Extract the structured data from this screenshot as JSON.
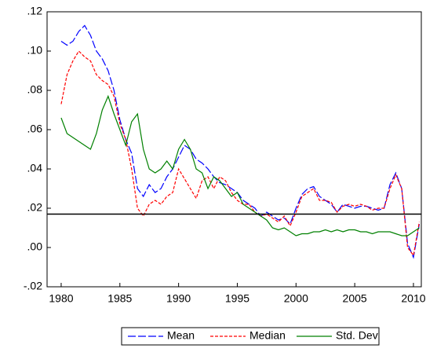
{
  "chart_data": {
    "type": "line",
    "x": [
      1980,
      1980.5,
      1981,
      1981.5,
      1982,
      1982.5,
      1983,
      1983.5,
      1984,
      1984.5,
      1985,
      1985.5,
      1986,
      1986.5,
      1987,
      1987.5,
      1988,
      1988.5,
      1989,
      1989.5,
      1990,
      1990.5,
      1991,
      1991.5,
      1992,
      1992.5,
      1993,
      1993.5,
      1994,
      1994.5,
      1995,
      1995.5,
      1996,
      1996.5,
      1997,
      1997.5,
      1998,
      1998.5,
      1999,
      1999.5,
      2000,
      2000.5,
      2001,
      2001.5,
      2002,
      2002.5,
      2003,
      2003.5,
      2004,
      2004.5,
      2005,
      2005.5,
      2006,
      2006.5,
      2007,
      2007.5,
      2008,
      2008.5,
      2009,
      2009.5,
      2010,
      2010.5
    ],
    "series": [
      {
        "name": "Mean",
        "color": "#0000ff",
        "dash": "10 3",
        "values": [
          0.105,
          0.103,
          0.105,
          0.11,
          0.113,
          0.108,
          0.1,
          0.096,
          0.09,
          0.08,
          0.065,
          0.055,
          0.048,
          0.03,
          0.026,
          0.032,
          0.028,
          0.03,
          0.036,
          0.04,
          0.046,
          0.052,
          0.05,
          0.045,
          0.043,
          0.04,
          0.036,
          0.033,
          0.032,
          0.03,
          0.028,
          0.024,
          0.022,
          0.02,
          0.016,
          0.018,
          0.016,
          0.014,
          0.015,
          0.012,
          0.02,
          0.027,
          0.03,
          0.031,
          0.026,
          0.024,
          0.022,
          0.018,
          0.022,
          0.021,
          0.02,
          0.021,
          0.021,
          0.02,
          0.019,
          0.02,
          0.032,
          0.038,
          0.03,
          0.002,
          -0.005,
          0.012
        ]
      },
      {
        "name": "Median",
        "color": "#ff0000",
        "dash": "4 2",
        "values": [
          0.073,
          0.088,
          0.095,
          0.1,
          0.097,
          0.095,
          0.088,
          0.085,
          0.083,
          0.077,
          0.063,
          0.055,
          0.04,
          0.02,
          0.016,
          0.022,
          0.024,
          0.022,
          0.026,
          0.028,
          0.04,
          0.035,
          0.03,
          0.025,
          0.034,
          0.036,
          0.03,
          0.036,
          0.034,
          0.028,
          0.024,
          0.022,
          0.022,
          0.018,
          0.016,
          0.017,
          0.015,
          0.013,
          0.016,
          0.011,
          0.018,
          0.026,
          0.028,
          0.03,
          0.024,
          0.024,
          0.023,
          0.018,
          0.021,
          0.022,
          0.021,
          0.022,
          0.021,
          0.019,
          0.02,
          0.02,
          0.03,
          0.037,
          0.03,
          0.0,
          -0.004,
          0.013
        ]
      },
      {
        "name": "Std. Dev",
        "color": "#008000",
        "dash": "none",
        "values": [
          0.066,
          0.058,
          0.056,
          0.054,
          0.052,
          0.05,
          0.058,
          0.07,
          0.077,
          0.068,
          0.06,
          0.052,
          0.064,
          0.068,
          0.05,
          0.04,
          0.038,
          0.04,
          0.044,
          0.04,
          0.05,
          0.055,
          0.05,
          0.04,
          0.038,
          0.03,
          0.036,
          0.034,
          0.03,
          0.026,
          0.028,
          0.022,
          0.02,
          0.018,
          0.016,
          0.014,
          0.01,
          0.009,
          0.01,
          0.008,
          0.006,
          0.007,
          0.007,
          0.008,
          0.008,
          0.009,
          0.008,
          0.009,
          0.008,
          0.009,
          0.009,
          0.008,
          0.008,
          0.007,
          0.008,
          0.008,
          0.008,
          0.007,
          0.006,
          0.006,
          0.008,
          0.01
        ]
      }
    ],
    "hline": 0.017,
    "xlim": [
      1978.8,
      2010.67
    ],
    "xticks": [
      1980,
      1985,
      1990,
      1995,
      2000,
      2005,
      2010
    ],
    "ylim": [
      -0.02,
      0.12
    ],
    "yticks": [
      {
        "value": -0.02,
        "label": "-.02"
      },
      {
        "value": 0,
        "label": ".00"
      },
      {
        "value": 0.02,
        "label": ".02"
      },
      {
        "value": 0.04,
        "label": ".04"
      },
      {
        "value": 0.06,
        "label": ".06"
      },
      {
        "value": 0.08,
        "label": ".08"
      },
      {
        "value": 0.1,
        "label": ".10"
      },
      {
        "value": 0.12,
        "label": ".12"
      }
    ],
    "legend": "bottom"
  }
}
